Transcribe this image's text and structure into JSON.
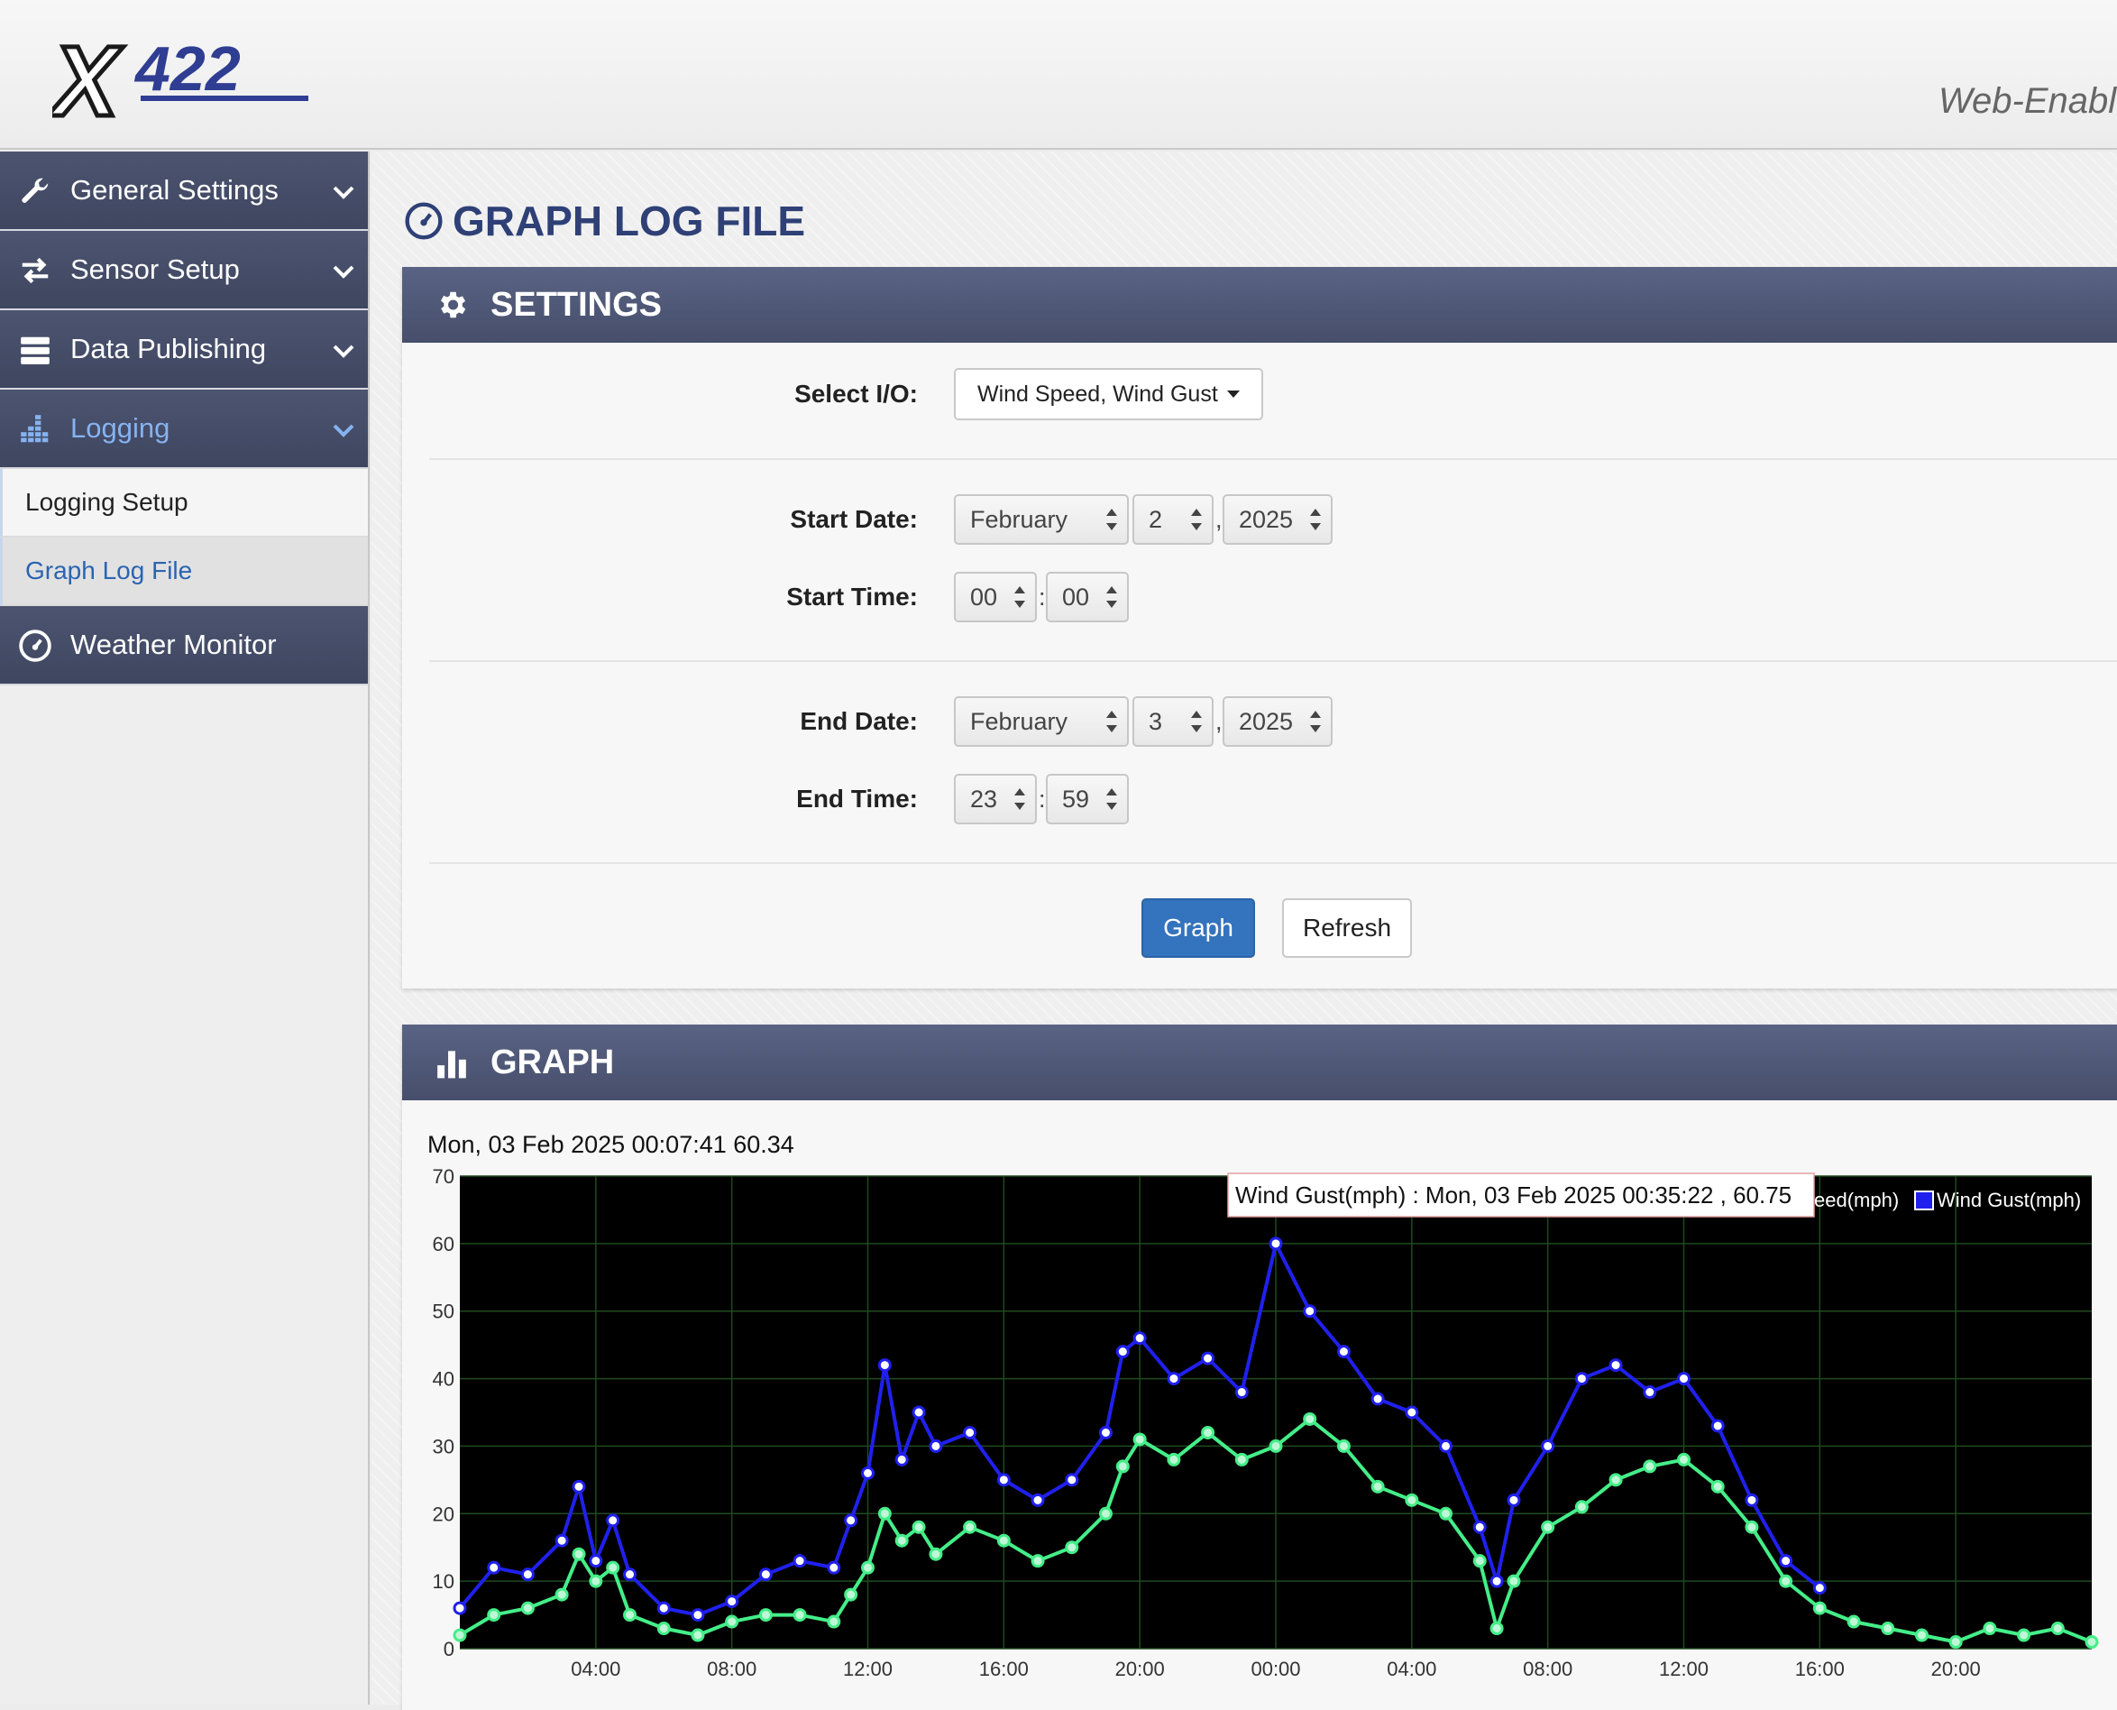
{
  "header": {
    "logo_text": "X422",
    "tagline": "Web-Enabl"
  },
  "sidebar": {
    "items": [
      {
        "label": "General Settings",
        "icon": "wrench-icon"
      },
      {
        "label": "Sensor Setup",
        "icon": "arrows-exchange-icon"
      },
      {
        "label": "Data Publishing",
        "icon": "server-icon"
      },
      {
        "label": "Logging",
        "icon": "bars-chart-icon"
      }
    ],
    "logging_subitems": [
      {
        "label": "Logging Setup"
      },
      {
        "label": "Graph Log File"
      }
    ],
    "weather": {
      "label": "Weather Monitor",
      "icon": "dashboard-icon"
    }
  },
  "page": {
    "title": "GRAPH LOG FILE"
  },
  "settings": {
    "heading": "SETTINGS",
    "select_io_label": "Select I/O:",
    "select_io_value": "Wind Speed, Wind Gust",
    "start_date_label": "Start Date:",
    "start_date": {
      "month": "February",
      "day": "2",
      "year": "2025"
    },
    "start_time_label": "Start Time:",
    "start_time": {
      "hour": "00",
      "minute": "00"
    },
    "end_date_label": "End Date:",
    "end_date": {
      "month": "February",
      "day": "3",
      "year": "2025"
    },
    "end_time_label": "End Time:",
    "end_time": {
      "hour": "23",
      "minute": "59"
    },
    "date_separator": ",",
    "time_separator": ":",
    "graph_button": "Graph",
    "refresh_button": "Refresh"
  },
  "graph_panel": {
    "heading": "GRAPH",
    "hover_readout": "Mon, 03 Feb 2025 00:07:41 60.34",
    "tooltip": "Wind Gust(mph) : Mon, 03 Feb 2025 00:35:22 , 60.75"
  },
  "chart_data": {
    "type": "line",
    "title": "",
    "xlabel": "",
    "ylabel": "",
    "ylim": [
      0,
      70
    ],
    "yticks": [
      "0",
      "10",
      "20",
      "30",
      "40",
      "50",
      "60",
      "70"
    ],
    "xticks": [
      "04:00",
      "08:00",
      "12:00",
      "16:00",
      "20:00",
      "00:00",
      "04:00",
      "08:00",
      "12:00",
      "16:00",
      "20:00"
    ],
    "x_range_hours": [
      0,
      48
    ],
    "grid": true,
    "legend_position": "top-right",
    "legend": [
      "Wind Speed(mph)",
      "Wind Gust(mph)"
    ],
    "legend_visible_text": [
      "eed(mph)",
      "Wind Gust(mph)"
    ],
    "background": "#000000",
    "series": [
      {
        "name": "Wind Speed(mph)",
        "color": "#44ee88",
        "x": [
          0,
          1,
          2,
          3,
          3.5,
          4,
          4.5,
          5,
          6,
          7,
          8,
          9,
          10,
          11,
          11.5,
          12,
          12.5,
          13,
          13.5,
          14,
          15,
          16,
          17,
          18,
          19,
          19.5,
          20,
          21,
          22,
          23,
          24,
          25,
          26,
          27,
          28,
          29,
          30,
          30.5,
          31,
          32,
          33,
          34,
          35,
          36,
          37,
          38,
          39,
          40,
          41,
          42,
          43,
          44,
          45,
          46,
          47,
          48
        ],
        "y": [
          2,
          5,
          6,
          8,
          14,
          10,
          12,
          5,
          3,
          2,
          4,
          5,
          5,
          4,
          8,
          12,
          20,
          16,
          18,
          14,
          18,
          16,
          13,
          15,
          20,
          27,
          31,
          28,
          32,
          28,
          30,
          34,
          30,
          24,
          22,
          20,
          13,
          3,
          10,
          18,
          21,
          25,
          27,
          28,
          24,
          18,
          10,
          6,
          4,
          3,
          2,
          1,
          3,
          2,
          3,
          1
        ]
      },
      {
        "name": "Wind Gust(mph)",
        "color": "#2020ee",
        "x": [
          0,
          1,
          2,
          3,
          3.5,
          4,
          4.5,
          5,
          6,
          7,
          8,
          9,
          10,
          11,
          11.5,
          12,
          12.5,
          13,
          13.5,
          14,
          15,
          16,
          17,
          18,
          19,
          19.5,
          20,
          21,
          22,
          23,
          24,
          25,
          26,
          27,
          28,
          29,
          30,
          30.5,
          31,
          32,
          33,
          34,
          35,
          36,
          37,
          38,
          39,
          40
        ],
        "y": [
          6,
          12,
          11,
          16,
          24,
          13,
          19,
          11,
          6,
          5,
          7,
          11,
          13,
          12,
          19,
          26,
          42,
          28,
          35,
          30,
          32,
          25,
          22,
          25,
          32,
          44,
          46,
          40,
          43,
          38,
          60,
          50,
          44,
          37,
          35,
          30,
          18,
          10,
          22,
          30,
          40,
          42,
          38,
          40,
          33,
          22,
          13,
          9
        ]
      }
    ]
  }
}
